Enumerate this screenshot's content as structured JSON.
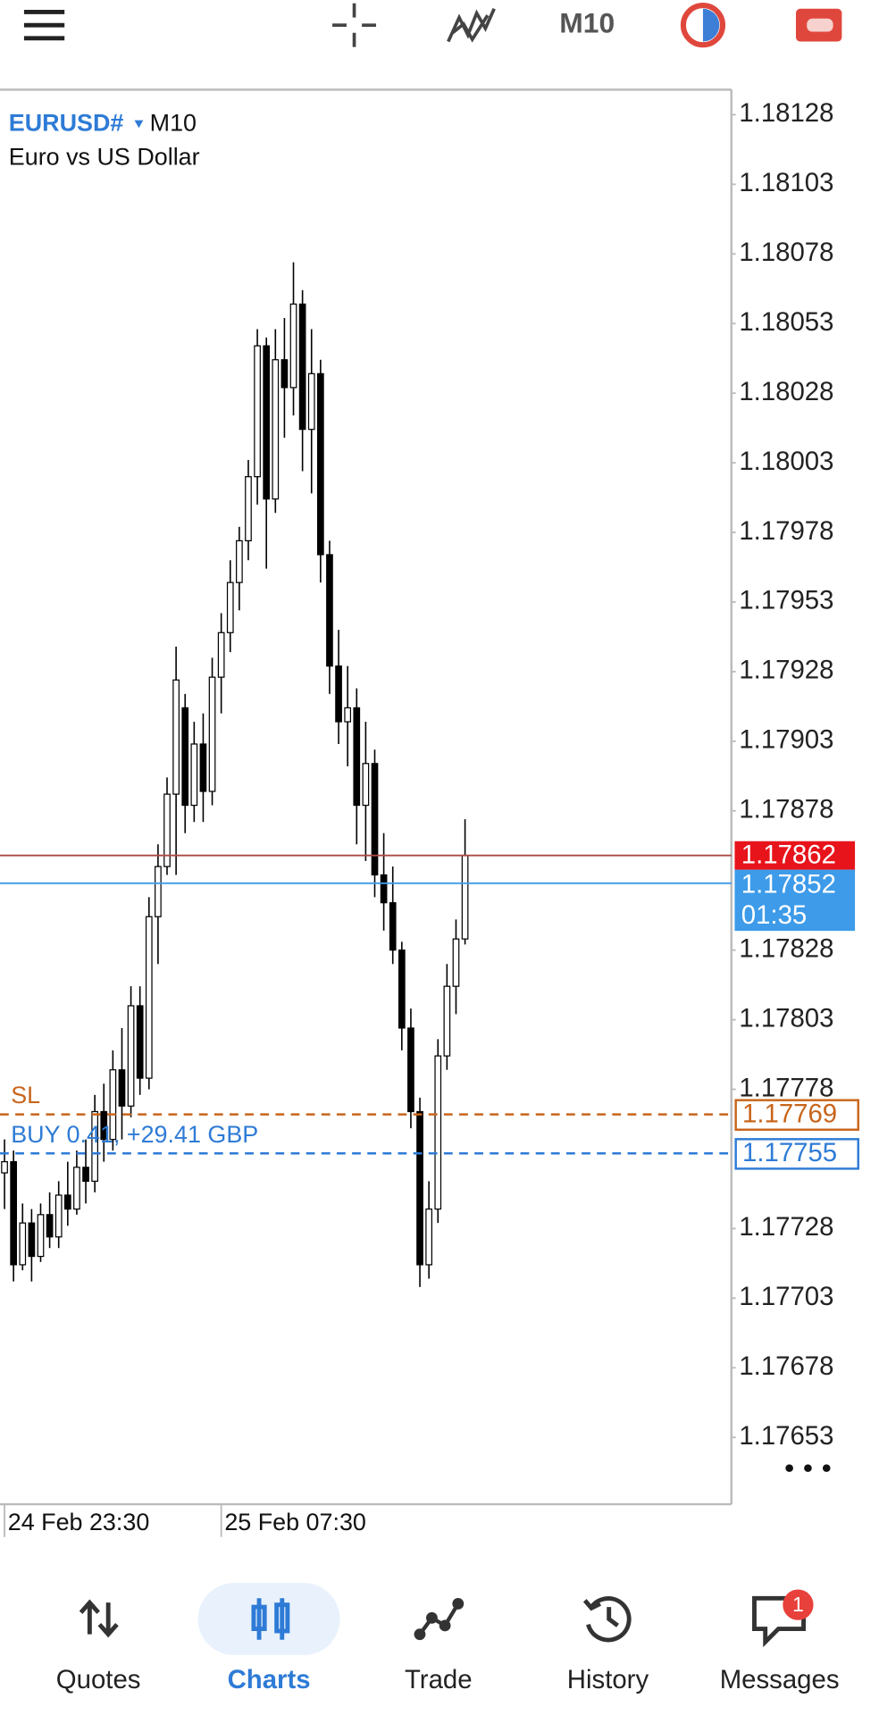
{
  "top_bar": {
    "timeframe": "M10"
  },
  "chart_data": {
    "type": "candlestick",
    "symbol": "EURUSD#",
    "timeframe": "M10",
    "description": "Euro vs US Dollar",
    "open": [
      1.17748,
      1.17752,
      1.17715,
      1.1773,
      1.17718,
      1.17733,
      1.17725,
      1.1774,
      1.17735,
      1.1775,
      1.17745,
      1.1777,
      1.1776,
      1.17785,
      1.17772,
      1.17808,
      1.17782,
      1.1784,
      1.17858,
      1.17884,
      1.17915,
      1.1788,
      1.17902,
      1.17885,
      1.17926,
      1.17942,
      1.1796,
      1.17975,
      1.17998,
      1.18045,
      1.1799,
      1.1804,
      1.1803,
      1.1806,
      1.18015,
      1.18035,
      1.1797,
      1.1793,
      1.1791,
      1.17915,
      1.1788,
      1.17895,
      1.17855,
      1.17845,
      1.17828,
      1.178,
      1.1777,
      1.17715,
      1.17735,
      1.1779,
      1.17815,
      1.17832
    ],
    "high": [
      1.1776,
      1.17756,
      1.17737,
      1.17735,
      1.17737,
      1.17741,
      1.17745,
      1.17752,
      1.17756,
      1.1776,
      1.17776,
      1.1778,
      1.17792,
      1.178,
      1.17815,
      1.17815,
      1.17847,
      1.17866,
      1.1789,
      1.17937,
      1.1792,
      1.1791,
      1.17913,
      1.17933,
      1.17949,
      1.17968,
      1.1798,
      1.18004,
      1.18051,
      1.18048,
      1.18051,
      1.18055,
      1.18075,
      1.18065,
      1.18051,
      1.1804,
      1.17975,
      1.17943,
      1.1793,
      1.17922,
      1.1791,
      1.179,
      1.1787,
      1.17858,
      1.17831,
      1.17807,
      1.17775,
      1.17745,
      1.17796,
      1.17823,
      1.17839,
      1.17875
    ],
    "low": [
      1.17735,
      1.17709,
      1.17713,
      1.17709,
      1.17716,
      1.17721,
      1.17721,
      1.17729,
      1.17733,
      1.17737,
      1.17741,
      1.17752,
      1.17756,
      1.1776,
      1.17768,
      1.17776,
      1.17778,
      1.17823,
      1.17855,
      1.17855,
      1.1787,
      1.17874,
      1.17874,
      1.1788,
      1.17913,
      1.17935,
      1.1795,
      1.17968,
      1.17988,
      1.17965,
      1.17985,
      1.18012,
      1.1802,
      1.18,
      1.17992,
      1.1796,
      1.1792,
      1.17902,
      1.17894,
      1.17866,
      1.1786,
      1.17847,
      1.17835,
      1.17823,
      1.17792,
      1.17764,
      1.17707,
      1.1771,
      1.1773,
      1.17785,
      1.17805,
      1.1783
    ],
    "close": [
      1.17752,
      1.17715,
      1.1773,
      1.17718,
      1.17733,
      1.17725,
      1.1774,
      1.17735,
      1.1775,
      1.17745,
      1.1777,
      1.1776,
      1.17785,
      1.17772,
      1.17808,
      1.17782,
      1.1784,
      1.17858,
      1.17884,
      1.17925,
      1.1788,
      1.17902,
      1.17885,
      1.17926,
      1.17942,
      1.1796,
      1.17975,
      1.17998,
      1.18045,
      1.1799,
      1.1804,
      1.1803,
      1.1806,
      1.18015,
      1.18035,
      1.1797,
      1.1793,
      1.1791,
      1.17915,
      1.1788,
      1.17895,
      1.17855,
      1.17845,
      1.17828,
      1.178,
      1.1777,
      1.17715,
      1.17735,
      1.1779,
      1.17815,
      1.17832,
      1.17862
    ],
    "up_color": "#ffffff",
    "down_color": "#000000",
    "xlim": [
      -0.5,
      80.5
    ],
    "xticks": [
      {
        "value": 0,
        "label": "24 Feb 23:30"
      },
      {
        "value": 24,
        "label": "25 Feb 07:30"
      }
    ],
    "ylim": [
      1.17629,
      1.18137
    ],
    "yticks": [
      1.18128,
      1.18103,
      1.18078,
      1.18053,
      1.18028,
      1.18003,
      1.17978,
      1.17953,
      1.17928,
      1.17903,
      1.17878,
      1.17828,
      1.17803,
      1.17778,
      1.17728,
      1.17703,
      1.17678,
      1.17653
    ],
    "bid": {
      "value": 1.17862,
      "color": "#e8141b"
    },
    "ask": {
      "value": 1.17852,
      "color": "#3d9be9",
      "timer": "01:35"
    },
    "orders": [
      {
        "label": "SL",
        "value": 1.17769,
        "color": "#c8651b"
      },
      {
        "label": "BUY 0.41, +29.41 GBP",
        "value": 1.17755,
        "color": "#2e7bd6"
      }
    ]
  },
  "nav": {
    "items": [
      "Quotes",
      "Charts",
      "Trade",
      "History",
      "Messages"
    ],
    "active": 1,
    "badge": "1"
  }
}
